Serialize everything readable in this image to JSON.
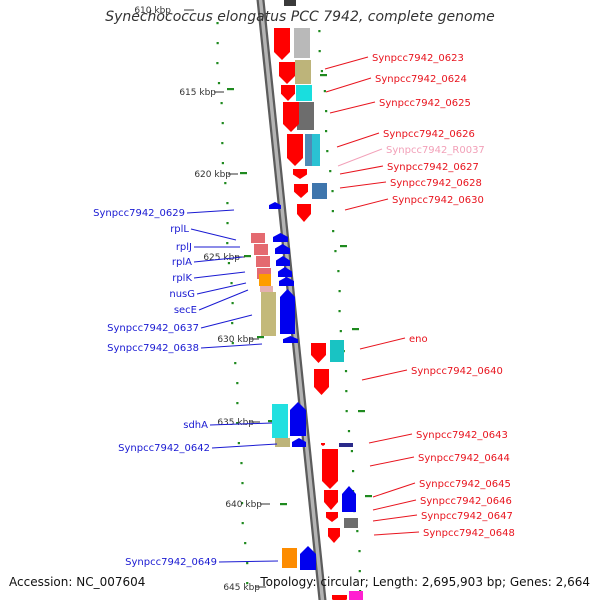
{
  "title": "Synechococcus elongatus PCC 7942, complete genome",
  "footer": {
    "accession": "Accession: NC_007604",
    "summary": "Topology: circular; Length: 2,695,903 bp; Genes: 2,664"
  },
  "scale": {
    "tick_labels": [
      "610 kbp",
      "615 kbp",
      "620 kbp",
      "625 kbp",
      "630 kbp",
      "635 kbp",
      "640 kbp",
      "645 kbp"
    ]
  },
  "right_labels": [
    {
      "text": "Synpcc7942_0623",
      "color": "#e8141e"
    },
    {
      "text": "Synpcc7942_0624",
      "color": "#e8141e"
    },
    {
      "text": "Synpcc7942_0625",
      "color": "#e8141e"
    },
    {
      "text": "Synpcc7942_0626",
      "color": "#e8141e"
    },
    {
      "text": "Synpcc7942_R0037",
      "color": "#f2a0b8"
    },
    {
      "text": "Synpcc7942_0627",
      "color": "#e8141e"
    },
    {
      "text": "Synpcc7942_0628",
      "color": "#e8141e"
    },
    {
      "text": "Synpcc7942_0630",
      "color": "#e8141e"
    },
    {
      "text": "eno",
      "color": "#e8141e"
    },
    {
      "text": "Synpcc7942_0640",
      "color": "#e8141e"
    },
    {
      "text": "Synpcc7942_0643",
      "color": "#e8141e"
    },
    {
      "text": "Synpcc7942_0644",
      "color": "#e8141e"
    },
    {
      "text": "Synpcc7942_0645",
      "color": "#e8141e"
    },
    {
      "text": "Synpcc7942_0646",
      "color": "#e8141e"
    },
    {
      "text": "Synpcc7942_0647",
      "color": "#e8141e"
    },
    {
      "text": "Synpcc7942_0648",
      "color": "#e8141e"
    }
  ],
  "left_labels": [
    {
      "text": "Synpcc7942_0629",
      "color": "#1a1ad2"
    },
    {
      "text": "rplL",
      "color": "#1a1ad2"
    },
    {
      "text": "rplJ",
      "color": "#1a1ad2"
    },
    {
      "text": "rplA",
      "color": "#1a1ad2"
    },
    {
      "text": "rplK",
      "color": "#1a1ad2"
    },
    {
      "text": "nusG",
      "color": "#1a1ad2"
    },
    {
      "text": "secE",
      "color": "#1a1ad2"
    },
    {
      "text": "Synpcc7942_0637",
      "color": "#1a1ad2"
    },
    {
      "text": "Synpcc7942_0638",
      "color": "#1a1ad2"
    },
    {
      "text": "sdhA",
      "color": "#1a1ad2"
    },
    {
      "text": "Synpcc7942_0642",
      "color": "#1a1ad2"
    },
    {
      "text": "Synpcc7942_0649",
      "color": "#1a1ad2"
    }
  ],
  "colors": {
    "forward_gene": "#ff0000",
    "reverse_gene": "#0000ee",
    "backbone": "#8c8c8c",
    "dots": "#1f8a1f"
  }
}
